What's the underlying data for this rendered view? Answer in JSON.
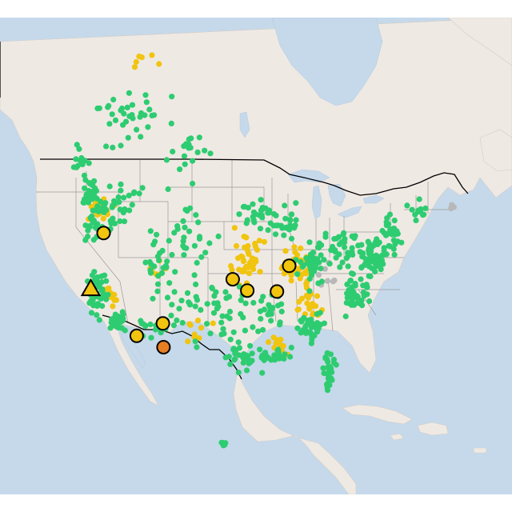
{
  "map": {
    "style": "light-basemap",
    "colors": {
      "water": "#c5d9ea",
      "land": "#efe9e4",
      "land_north": "#f3efeb",
      "state_border": "#9a9a9a",
      "country_border": "#000000",
      "good": "#2ecc71",
      "moderate": "#f1c40f",
      "unhealthy_sensitive": "#e67e22",
      "no_data": "#b8b8b8",
      "marker_outline": "#000000"
    },
    "legend_visible": false,
    "labels_visible": false
  },
  "chart_data": {
    "type": "scatter",
    "projection": "web-mercator",
    "view": {
      "lon_range": [
        -138,
        -50
      ],
      "lat_range": [
        13,
        61
      ]
    },
    "categories": [
      "good",
      "moderate",
      "unhealthy_sensitive",
      "no_data"
    ],
    "highlighted_sites": [
      {
        "shape": "triangle",
        "category": "moderate",
        "lon": -122.4,
        "lat": 37.8
      },
      {
        "shape": "circle",
        "category": "moderate",
        "lon": -120.2,
        "lat": 43.5
      },
      {
        "shape": "circle",
        "category": "moderate",
        "lon": -114.5,
        "lat": 32.6
      },
      {
        "shape": "circle",
        "category": "moderate",
        "lon": -110.0,
        "lat": 34.0
      },
      {
        "shape": "circle",
        "category": "unhealthy_sensitive",
        "lon": -109.9,
        "lat": 31.3
      },
      {
        "shape": "circle",
        "category": "moderate",
        "lon": -98.0,
        "lat": 38.8
      },
      {
        "shape": "circle",
        "category": "moderate",
        "lon": -95.5,
        "lat": 37.6
      },
      {
        "shape": "circle",
        "category": "moderate",
        "lon": -90.4,
        "lat": 37.5
      },
      {
        "shape": "circle",
        "category": "moderate",
        "lon": -88.3,
        "lat": 40.2
      }
    ],
    "station_clusters": [
      {
        "category": "good",
        "center": [
          -122.6,
          47.2
        ],
        "spread": [
          1.4,
          1.2
        ],
        "n": 35
      },
      {
        "category": "good",
        "center": [
          -121.0,
          44.8
        ],
        "spread": [
          2.8,
          2.0
        ],
        "n": 38
      },
      {
        "category": "good",
        "center": [
          -121.2,
          37.5
        ],
        "spread": [
          1.6,
          2.6
        ],
        "n": 50
      },
      {
        "category": "good",
        "center": [
          -117.6,
          34.0
        ],
        "spread": [
          1.6,
          0.9
        ],
        "n": 36
      },
      {
        "category": "good",
        "center": [
          -116.0,
          46.5
        ],
        "spread": [
          3.2,
          2.4
        ],
        "n": 25
      },
      {
        "category": "good",
        "center": [
          -111.2,
          41.0
        ],
        "spread": [
          3.0,
          3.0
        ],
        "n": 22
      },
      {
        "category": "good",
        "center": [
          -105.5,
          44.0
        ],
        "spread": [
          4.2,
          3.5
        ],
        "n": 30
      },
      {
        "category": "good",
        "center": [
          -107.5,
          36.5
        ],
        "spread": [
          4.0,
          3.0
        ],
        "n": 22
      },
      {
        "category": "good",
        "center": [
          -112.0,
          33.5
        ],
        "spread": [
          2.0,
          1.2
        ],
        "n": 15
      },
      {
        "category": "good",
        "center": [
          -99.0,
          35.0
        ],
        "spread": [
          4.5,
          3.5
        ],
        "n": 35
      },
      {
        "category": "good",
        "center": [
          -96.0,
          30.0
        ],
        "spread": [
          3.5,
          1.8
        ],
        "n": 35
      },
      {
        "category": "good",
        "center": [
          -90.5,
          30.3
        ],
        "spread": [
          3.0,
          0.8
        ],
        "n": 25
      },
      {
        "category": "good",
        "center": [
          -81.6,
          28.5
        ],
        "spread": [
          1.2,
          2.5
        ],
        "n": 30
      },
      {
        "category": "good",
        "center": [
          -84.5,
          33.5
        ],
        "spread": [
          2.8,
          1.8
        ],
        "n": 35
      },
      {
        "category": "good",
        "center": [
          -77.0,
          37.5
        ],
        "spread": [
          2.2,
          2.2
        ],
        "n": 45
      },
      {
        "category": "good",
        "center": [
          -74.0,
          41.2
        ],
        "spread": [
          2.2,
          1.6
        ],
        "n": 55
      },
      {
        "category": "good",
        "center": [
          -71.0,
          43.5
        ],
        "spread": [
          2.0,
          1.6
        ],
        "n": 30
      },
      {
        "category": "good",
        "center": [
          -79.5,
          42.0
        ],
        "spread": [
          3.0,
          1.5
        ],
        "n": 35
      },
      {
        "category": "good",
        "center": [
          -84.5,
          40.5
        ],
        "spread": [
          3.0,
          2.0
        ],
        "n": 40
      },
      {
        "category": "good",
        "center": [
          -89.0,
          44.5
        ],
        "spread": [
          3.0,
          1.5
        ],
        "n": 25
      },
      {
        "category": "good",
        "center": [
          -94.0,
          45.5
        ],
        "spread": [
          3.2,
          2.0
        ],
        "n": 25
      },
      {
        "category": "good",
        "center": [
          -91.5,
          35.0
        ],
        "spread": [
          2.5,
          2.0
        ],
        "n": 25
      },
      {
        "category": "good",
        "center": [
          -116.0,
          53.5
        ],
        "spread": [
          6.5,
          2.5
        ],
        "n": 35
      },
      {
        "category": "good",
        "center": [
          -105.5,
          51.0
        ],
        "spread": [
          4.5,
          1.8
        ],
        "n": 18
      },
      {
        "category": "good",
        "center": [
          -124.0,
          50.0
        ],
        "spread": [
          1.8,
          1.5
        ],
        "n": 12
      },
      {
        "category": "good",
        "center": [
          -66.0,
          45.5
        ],
        "spread": [
          2.2,
          1.2
        ],
        "n": 12
      },
      {
        "category": "good",
        "center": [
          -99.5,
          19.5
        ],
        "spread": [
          0.5,
          0.3
        ],
        "n": 6
      },
      {
        "category": "moderate",
        "center": [
          -120.8,
          45.8
        ],
        "spread": [
          1.8,
          1.2
        ],
        "n": 25
      },
      {
        "category": "moderate",
        "center": [
          -118.5,
          37.0
        ],
        "spread": [
          1.5,
          2.0
        ],
        "n": 8
      },
      {
        "category": "moderate",
        "center": [
          -111.0,
          40.0
        ],
        "spread": [
          2.5,
          1.5
        ],
        "n": 7
      },
      {
        "category": "moderate",
        "center": [
          -95.0,
          40.5
        ],
        "spread": [
          3.0,
          2.8
        ],
        "n": 40
      },
      {
        "category": "moderate",
        "center": [
          -86.8,
          40.0
        ],
        "spread": [
          2.6,
          1.8
        ],
        "n": 45
      },
      {
        "category": "moderate",
        "center": [
          -85.0,
          36.0
        ],
        "spread": [
          2.2,
          1.5
        ],
        "n": 25
      },
      {
        "category": "moderate",
        "center": [
          -90.5,
          31.0
        ],
        "spread": [
          2.0,
          1.2
        ],
        "n": 10
      },
      {
        "category": "moderate",
        "center": [
          -104.0,
          34.0
        ],
        "spread": [
          3.0,
          2.0
        ],
        "n": 10
      },
      {
        "category": "moderate",
        "center": [
          -113.0,
          58.0
        ],
        "spread": [
          3.0,
          1.0
        ],
        "n": 6
      },
      {
        "category": "unhealthy_sensitive",
        "center": [
          -103.0,
          33.0
        ],
        "spread": [
          1.0,
          1.0
        ],
        "n": 0
      },
      {
        "category": "no_data",
        "center": [
          -82.0,
          39.0
        ],
        "spread": [
          2.5,
          1.5
        ],
        "n": 8
      },
      {
        "category": "no_data",
        "center": [
          -60.0,
          46.0
        ],
        "spread": [
          1.2,
          0.5
        ],
        "n": 3
      }
    ]
  }
}
